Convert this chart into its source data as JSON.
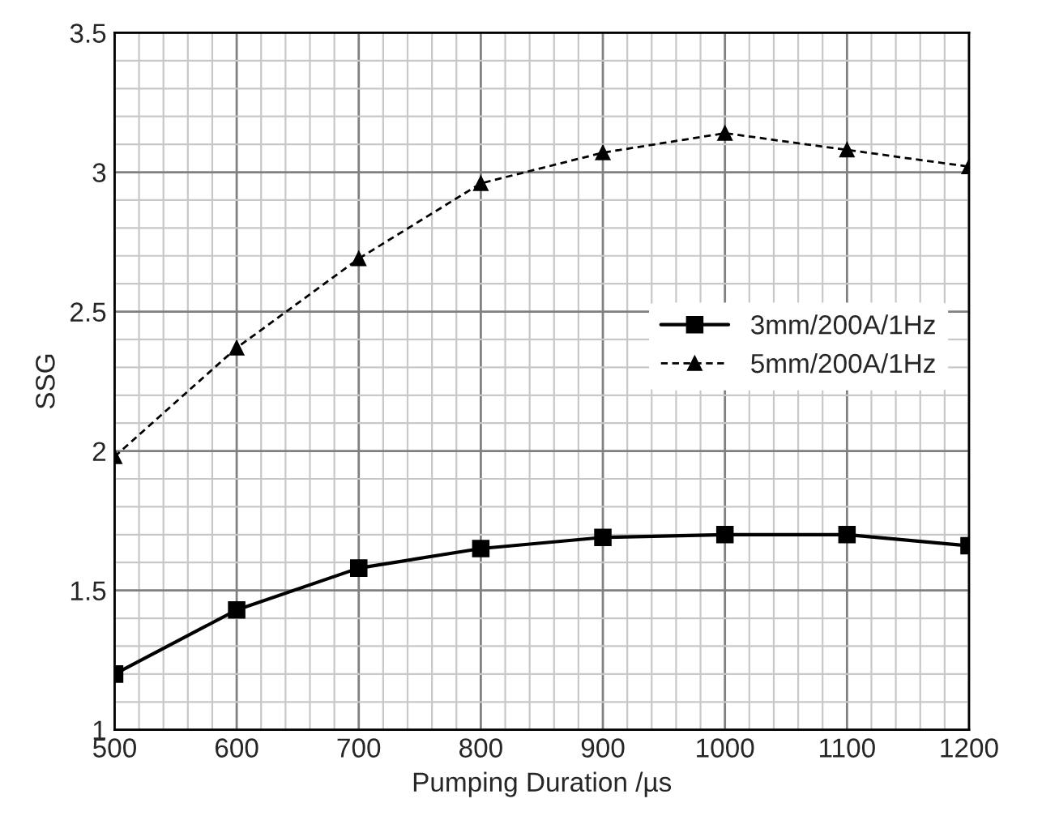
{
  "chart_data": {
    "type": "line",
    "xlabel": "Pumping Duration /µs",
    "ylabel": "SSG",
    "x": [
      500,
      600,
      700,
      800,
      900,
      1000,
      1100,
      1200
    ],
    "series": [
      {
        "name": "3mm/200A/1Hz",
        "color": "#000000",
        "marker": "square",
        "line_style": "solid",
        "values": [
          1.2,
          1.43,
          1.58,
          1.65,
          1.69,
          1.7,
          1.7,
          1.66
        ]
      },
      {
        "name": "5mm/200A/1Hz",
        "color": "#000000",
        "marker": "triangle",
        "line_style": "dashed",
        "values": [
          1.98,
          2.37,
          2.69,
          2.96,
          3.07,
          3.14,
          3.08,
          3.02
        ]
      }
    ],
    "xlim": [
      500,
      1200
    ],
    "xticks": [
      500,
      600,
      700,
      800,
      900,
      1000,
      1100,
      1200
    ],
    "ylim": [
      1,
      3.5
    ],
    "yticks": [
      1,
      1.5,
      2,
      2.5,
      3,
      3.5
    ],
    "grid": true,
    "legend": "center right"
  }
}
